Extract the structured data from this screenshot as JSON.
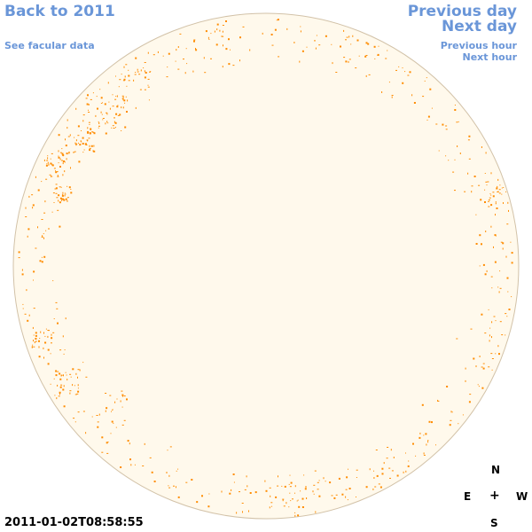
{
  "nav": {
    "back_label": "Back to 2011",
    "prev_day_label": "Previous day",
    "next_day_label": "Next day",
    "facular_label": "See facular data",
    "prev_hour_label": "Previous hour",
    "next_hour_label": "Next hour"
  },
  "timestamp": "2011-01-02T08:58:55",
  "compass": {
    "n": "N",
    "e": "E",
    "center": "+",
    "w": "W",
    "s": "S"
  },
  "colors": {
    "disk_fill": "#fff9ec",
    "disk_edge": "#d2c2a8",
    "facula": "#ff8c00",
    "link": "#6a96d8"
  }
}
